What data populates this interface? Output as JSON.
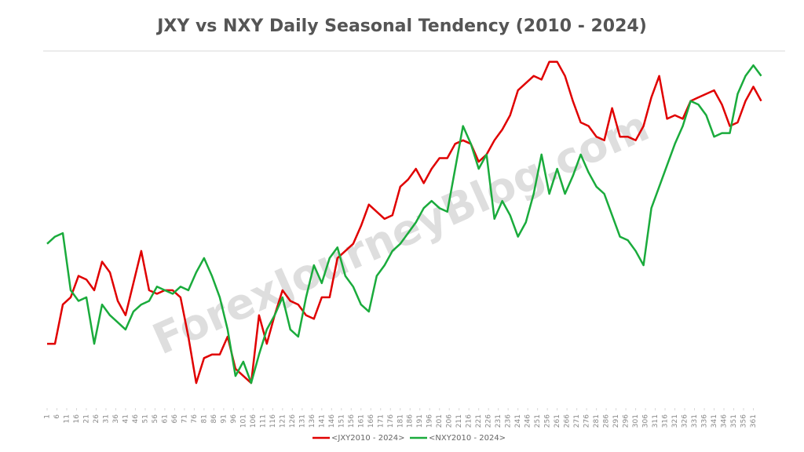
{
  "chart_data": {
    "type": "line",
    "title": "JXY vs NXY Daily Seasonal Tendency (2010 - 2024)",
    "watermark": "ForexJourneyBlog.com",
    "x": [
      1,
      5,
      9,
      13,
      17,
      21,
      25,
      29,
      33,
      37,
      41,
      45,
      49,
      53,
      57,
      61,
      65,
      69,
      73,
      77,
      81,
      85,
      89,
      93,
      97,
      101,
      105,
      109,
      113,
      117,
      121,
      125,
      129,
      133,
      137,
      141,
      145,
      149,
      153,
      157,
      161,
      165,
      169,
      173,
      177,
      181,
      185,
      189,
      193,
      197,
      201,
      205,
      209,
      213,
      217,
      221,
      225,
      229,
      233,
      237,
      241,
      245,
      249,
      253,
      257,
      261,
      265,
      269,
      273,
      277,
      281,
      285,
      289,
      293,
      297,
      301,
      305,
      309,
      313,
      317,
      321,
      325,
      329,
      333,
      337,
      341,
      345,
      349,
      353,
      357,
      361,
      365
    ],
    "xlim": [
      1,
      366
    ],
    "xticks": [
      1,
      6,
      11,
      16,
      21,
      26,
      31,
      36,
      41,
      46,
      51,
      56,
      61,
      66,
      71,
      76,
      81,
      86,
      91,
      96,
      101,
      106,
      111,
      116,
      121,
      126,
      131,
      136,
      141,
      146,
      151,
      156,
      161,
      166,
      171,
      176,
      181,
      186,
      191,
      196,
      201,
      206,
      211,
      216,
      221,
      226,
      231,
      236,
      241,
      246,
      251,
      256,
      261,
      266,
      271,
      276,
      281,
      286,
      291,
      296,
      301,
      306,
      311,
      316,
      321,
      326,
      331,
      336,
      341,
      346,
      351,
      356,
      361
    ],
    "ylim": [
      0,
      100
    ],
    "legend": "bottom",
    "series": [
      {
        "name": "<JXY2010 - 2024>",
        "color": "#e00000",
        "values": [
          18,
          18,
          29,
          31,
          37,
          36,
          33,
          41,
          38,
          30,
          26,
          35,
          44,
          33,
          32,
          33,
          33,
          31,
          20,
          7,
          14,
          15,
          15,
          20,
          11,
          9,
          7,
          26,
          18,
          26,
          33,
          30,
          29,
          26,
          25,
          31,
          31,
          42,
          44,
          46,
          51,
          57,
          55,
          53,
          54,
          62,
          64,
          67,
          63,
          67,
          70,
          70,
          74,
          75,
          74,
          69,
          71,
          75,
          78,
          82,
          89,
          91,
          93,
          92,
          97,
          97,
          93,
          86,
          80,
          79,
          76,
          75,
          84,
          76,
          76,
          75,
          79,
          87,
          93,
          81,
          82,
          81,
          86,
          87,
          88,
          89,
          85,
          79,
          80,
          86,
          90,
          86
        ]
      },
      {
        "name": "<NXY2010 - 2024>",
        "color": "#1aab3c",
        "values": [
          46,
          48,
          49,
          33,
          30,
          31,
          18,
          29,
          26,
          24,
          22,
          27,
          29,
          30,
          34,
          33,
          32,
          34,
          33,
          38,
          42,
          37,
          31,
          22,
          9,
          13,
          7,
          15,
          22,
          26,
          31,
          22,
          20,
          31,
          40,
          35,
          42,
          45,
          37,
          34,
          29,
          27,
          37,
          40,
          44,
          46,
          49,
          52,
          56,
          58,
          56,
          55,
          67,
          79,
          74,
          67,
          71,
          53,
          58,
          54,
          48,
          52,
          60,
          71,
          60,
          67,
          60,
          65,
          71,
          66,
          62,
          60,
          54,
          48,
          47,
          44,
          40,
          56,
          62,
          68,
          74,
          79,
          86,
          85,
          82,
          76,
          77,
          77,
          88,
          93,
          96,
          93
        ]
      }
    ]
  }
}
